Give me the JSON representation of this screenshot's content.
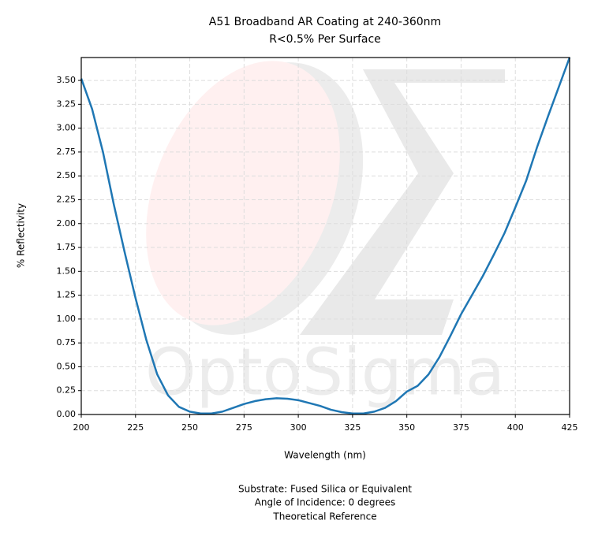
{
  "chart_data": {
    "type": "line",
    "title": "A51 Broadband AR Coating at 240-360nm",
    "subtitle": "R<0.5% Per Surface",
    "x_label": "Wavelength (nm)",
    "y_label": "% Reflectivity",
    "watermark": "OptoSigma",
    "notes": [
      "Substrate: Fused Silica or Equivalent",
      "Angle of Incidence: 0 degrees",
      "Theoretical Reference"
    ],
    "x": [
      200,
      205,
      210,
      215,
      220,
      225,
      230,
      235,
      240,
      245,
      250,
      255,
      260,
      265,
      270,
      275,
      280,
      285,
      290,
      295,
      300,
      305,
      310,
      315,
      320,
      325,
      330,
      335,
      340,
      345,
      350,
      355,
      360,
      365,
      370,
      375,
      380,
      385,
      390,
      395,
      400,
      405,
      410,
      415,
      420,
      425
    ],
    "series": [
      {
        "name": "Reflectivity",
        "color": "#1f77b4",
        "values": [
          3.52,
          3.2,
          2.75,
          2.2,
          1.7,
          1.22,
          0.78,
          0.42,
          0.2,
          0.08,
          0.03,
          0.01,
          0.01,
          0.03,
          0.07,
          0.11,
          0.14,
          0.16,
          0.17,
          0.165,
          0.15,
          0.12,
          0.09,
          0.05,
          0.025,
          0.01,
          0.01,
          0.03,
          0.07,
          0.14,
          0.24,
          0.3,
          0.42,
          0.6,
          0.82,
          1.05,
          1.25,
          1.45,
          1.67,
          1.9,
          2.17,
          2.45,
          2.8,
          3.12,
          3.43,
          3.74
        ]
      }
    ],
    "xlim": [
      200,
      425
    ],
    "xticks": [
      200,
      225,
      250,
      275,
      300,
      325,
      350,
      375,
      400,
      425
    ],
    "ylim": [
      0,
      3.74
    ],
    "yticks": [
      {
        "value": 0,
        "label": "0.00"
      },
      {
        "value": 0.25,
        "label": "0.25"
      },
      {
        "value": 0.5,
        "label": "0.50"
      },
      {
        "value": 0.75,
        "label": "0.75"
      },
      {
        "value": 1,
        "label": "1.00"
      },
      {
        "value": 1.25,
        "label": "1.25"
      },
      {
        "value": 1.5,
        "label": "1.50"
      },
      {
        "value": 1.75,
        "label": "1.75"
      },
      {
        "value": 2,
        "label": "2.00"
      },
      {
        "value": 2.25,
        "label": "2.25"
      },
      {
        "value": 2.5,
        "label": "2.50"
      },
      {
        "value": 2.75,
        "label": "2.75"
      },
      {
        "value": 3,
        "label": "3.00"
      },
      {
        "value": 3.25,
        "label": "3.25"
      },
      {
        "value": 3.5,
        "label": "3.50"
      }
    ],
    "grid": true
  }
}
